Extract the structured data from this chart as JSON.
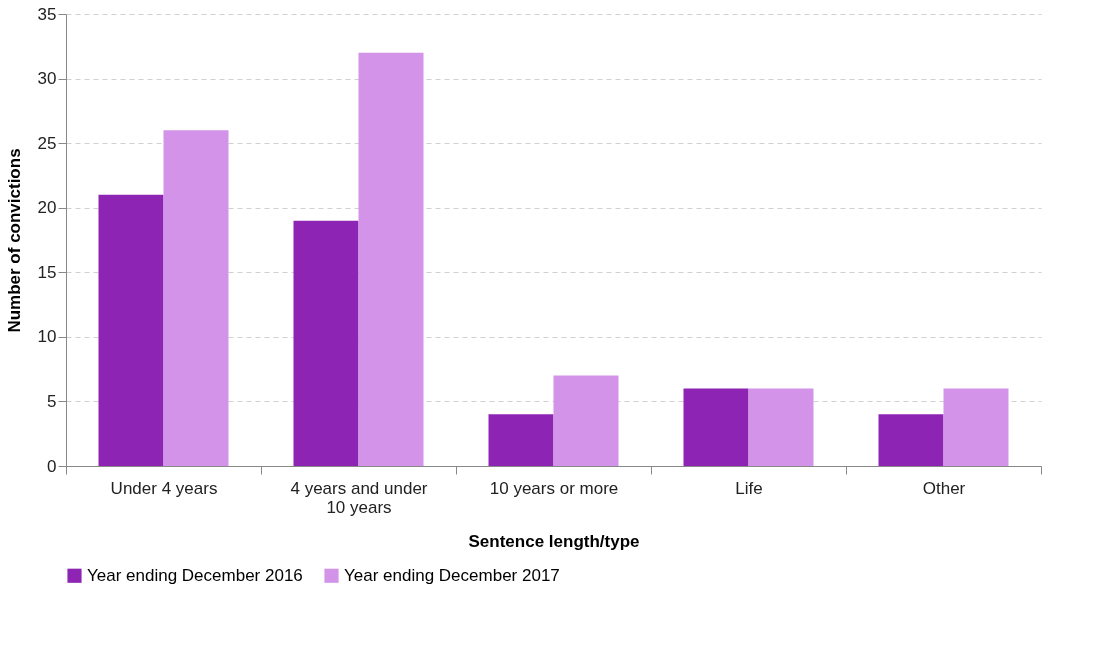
{
  "chart_data": {
    "type": "bar",
    "xlabel": "Sentence length/type",
    "ylabel": "Number of convictions",
    "categories": [
      "Under 4 years",
      "4 years and under 10 years",
      "10 years or more",
      "Life",
      "Other"
    ],
    "series": [
      {
        "name": "Year ending December 2016",
        "color": "#8e24b4",
        "values": [
          21,
          19,
          4,
          6,
          4
        ]
      },
      {
        "name": "Year ending December 2017",
        "color": "#d293e8",
        "values": [
          26,
          32,
          7,
          6,
          6
        ]
      }
    ],
    "ylim": [
      0,
      35
    ],
    "yticks": [
      0,
      5,
      10,
      15,
      20,
      25,
      30,
      35
    ],
    "grid": "y",
    "legend": "bottom"
  }
}
